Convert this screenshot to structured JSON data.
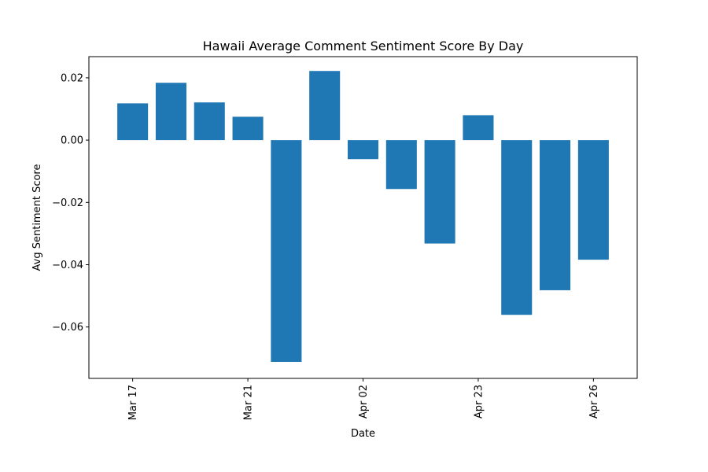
{
  "chart_data": {
    "type": "bar",
    "title": "Hawaii Average Comment Sentiment Score By Day",
    "xlabel": "Date",
    "ylabel": "Avg Sentiment Score",
    "ylim": [
      -0.0765,
      0.0268
    ],
    "yticks": [
      0.02,
      0.0,
      -0.02,
      -0.04,
      -0.06
    ],
    "ytick_labels": [
      "0.02",
      "0.00",
      "−0.02",
      "−0.04",
      "−0.06"
    ],
    "xtick_labels": [
      {
        "label": "Mar 17",
        "bar_index": 0
      },
      {
        "label": "Mar 21",
        "bar_index": 3
      },
      {
        "label": "Apr 02",
        "bar_index": 6
      },
      {
        "label": "Apr 23",
        "bar_index": 9
      },
      {
        "label": "Apr 26",
        "bar_index": 12
      }
    ],
    "values": [
      0.0118,
      0.0184,
      0.0121,
      0.0075,
      -0.0712,
      0.0222,
      -0.0061,
      -0.0157,
      -0.0332,
      0.008,
      -0.0561,
      -0.0482,
      -0.0384
    ],
    "grid": false,
    "colors": {
      "bar": "#1f77b4",
      "axes": "#000000"
    }
  }
}
